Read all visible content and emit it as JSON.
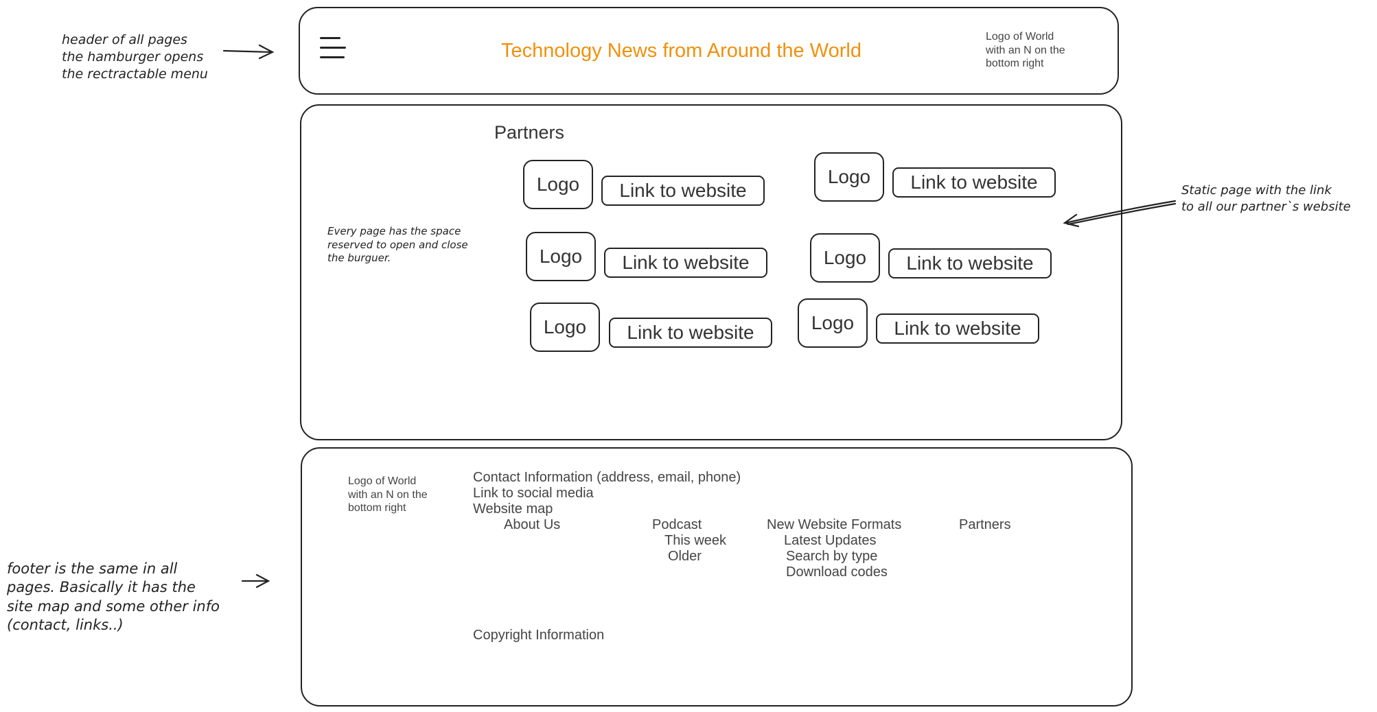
{
  "annotations": {
    "header_note": "header of all pages\nthe hamburger opens\nthe rectractable menu",
    "burger_space_note": "Every page has the space\nreserved to open and close\n the burguer.",
    "static_page_note": "Static page with the link\nto all our partner`s website",
    "footer_note": "footer is the same in all\npages. Basically it has the\nsite map and some other info\n(contact, links..)"
  },
  "header": {
    "title": "Technology News from Around the World",
    "title_color": "#f0900c",
    "logo_text": "Logo of World\nwith an N on the\nbottom right",
    "menu_icon": "hamburger-icon"
  },
  "partners": {
    "heading": "Partners",
    "items": [
      {
        "logo": "Logo",
        "link": "Link to website"
      },
      {
        "logo": "Logo",
        "link": "Link to website"
      },
      {
        "logo": "Logo",
        "link": "Link to website"
      },
      {
        "logo": "Logo",
        "link": "Link to website"
      },
      {
        "logo": "Logo",
        "link": "Link to website"
      },
      {
        "logo": "Logo",
        "link": "Link to website"
      }
    ]
  },
  "footer": {
    "logo_text": "Logo of World\nwith an N on the\nbottom right",
    "contact": "Contact Information (address, email, phone)",
    "social": "Link to social media",
    "sitemap_label": "Website map",
    "sitemap": {
      "about": "About Us",
      "podcast": "Podcast",
      "podcast_this_week": "This week",
      "podcast_older": "Older",
      "formats": "New Website Formats",
      "formats_latest": "Latest Updates",
      "formats_search": "Search by type",
      "formats_download": "Download codes",
      "partners": "Partners"
    },
    "copyright": "Copyright Information"
  }
}
